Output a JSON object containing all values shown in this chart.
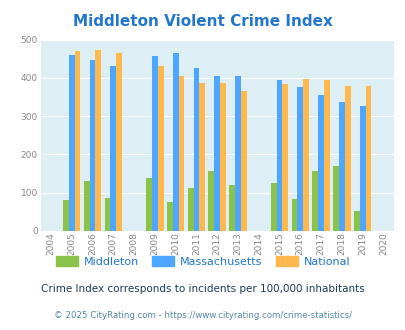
{
  "title": "Middleton Violent Crime Index",
  "subtitle": "Crime Index corresponds to incidents per 100,000 inhabitants",
  "footer": "© 2025 CityRating.com - https://www.cityrating.com/crime-statistics/",
  "years": [
    2005,
    2006,
    2007,
    2009,
    2010,
    2011,
    2012,
    2013,
    2015,
    2016,
    2017,
    2018,
    2019
  ],
  "middleton": [
    80,
    130,
    87,
    138,
    76,
    112,
    157,
    119,
    126,
    83,
    157,
    171,
    51
  ],
  "massachusetts": [
    460,
    447,
    430,
    457,
    466,
    427,
    405,
    405,
    394,
    376,
    356,
    336,
    327
  ],
  "national": [
    469,
    473,
    466,
    430,
    404,
    387,
    387,
    366,
    383,
    397,
    394,
    380,
    380
  ],
  "xlim": [
    2003.5,
    2020.5
  ],
  "ylim": [
    0,
    500
  ],
  "yticks": [
    0,
    100,
    200,
    300,
    400,
    500
  ],
  "xticks": [
    2004,
    2005,
    2006,
    2007,
    2008,
    2009,
    2010,
    2011,
    2012,
    2013,
    2014,
    2015,
    2016,
    2017,
    2018,
    2019,
    2020
  ],
  "bar_width": 0.28,
  "color_middleton": "#8bc34a",
  "color_massachusetts": "#4da6ff",
  "color_national": "#ffb84d",
  "bg_color": "#ddeef5",
  "title_color": "#2277cc",
  "grid_color": "#ffffff",
  "subtitle_color": "#1a3a5c",
  "footer_color": "#5588aa",
  "tick_color": "#888888"
}
